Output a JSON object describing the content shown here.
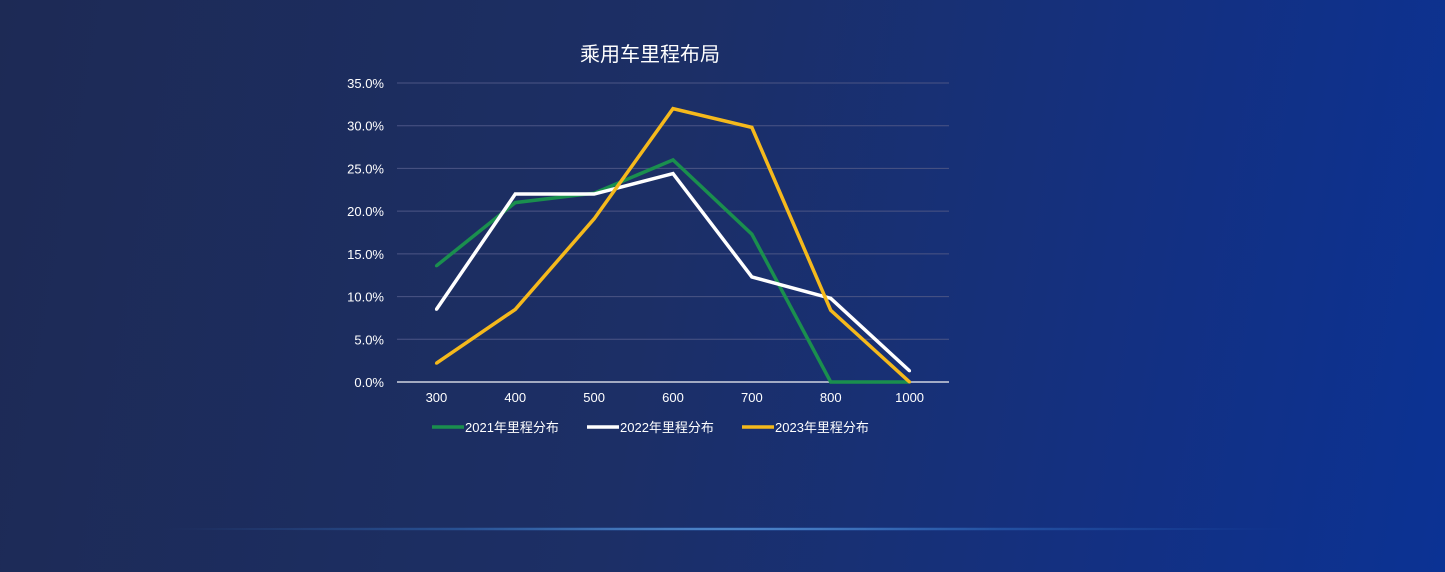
{
  "chart_data": {
    "type": "line",
    "title": "乘用车里程布局",
    "categories": [
      "300",
      "400",
      "500",
      "600",
      "700",
      "800",
      "1000"
    ],
    "ylim": [
      0,
      35
    ],
    "yticks": [
      "0.0%",
      "5.0%",
      "10.0%",
      "15.0%",
      "20.0%",
      "25.0%",
      "30.0%",
      "35.0%"
    ],
    "grid": true,
    "legend": "bottom",
    "series": [
      {
        "name": "2021年里程分布",
        "color": "#1a8f4e",
        "values": [
          13.6,
          21.0,
          22.1,
          26.0,
          17.3,
          0.0,
          0.0
        ]
      },
      {
        "name": "2022年里程分布",
        "color": "#ffffff",
        "values": [
          8.5,
          22.0,
          22.0,
          24.4,
          12.3,
          9.8,
          1.3
        ]
      },
      {
        "name": "2023年里程分布",
        "color": "#f5b91c",
        "values": [
          2.2,
          8.5,
          19.1,
          32.0,
          29.8,
          8.4,
          0.0
        ]
      }
    ]
  }
}
